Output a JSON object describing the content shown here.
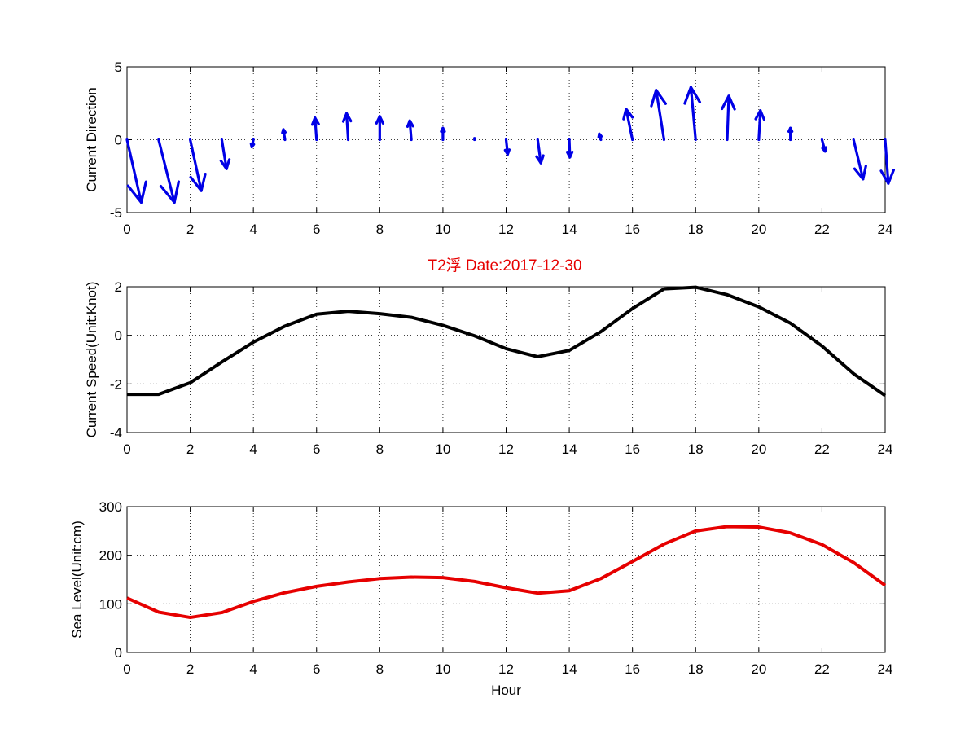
{
  "figure_title": "T2浮   Date:2017-12-30",
  "title_color": "#e60000",
  "chart_data": [
    {
      "type": "quiver",
      "ylabel": "Current Direction",
      "xlabel": "",
      "xlim": [
        0,
        24
      ],
      "ylim": [
        -5,
        5
      ],
      "xticks": [
        0,
        2,
        4,
        6,
        8,
        10,
        12,
        14,
        16,
        18,
        20,
        22,
        24
      ],
      "yticks": [
        -5,
        0,
        5
      ],
      "grid": true,
      "color": "#0000e6",
      "base_y": 0,
      "x": [
        0,
        1,
        2,
        3,
        4,
        5,
        6,
        7,
        8,
        9,
        10,
        11,
        12,
        13,
        14,
        15,
        16,
        17,
        18,
        19,
        20,
        21,
        22,
        23,
        24
      ],
      "u": [
        0.45,
        0.5,
        0.35,
        0.15,
        -0.05,
        -0.05,
        -0.05,
        -0.05,
        0.0,
        -0.05,
        0.0,
        0.0,
        0.05,
        0.1,
        0.02,
        -0.05,
        -0.2,
        -0.25,
        -0.15,
        0.05,
        0.05,
        0.0,
        0.1,
        0.3,
        0.1
      ],
      "v": [
        -4.3,
        -4.3,
        -3.5,
        -2.0,
        -0.5,
        0.7,
        1.5,
        1.8,
        1.6,
        1.3,
        0.8,
        0.1,
        -1.0,
        -1.6,
        -1.2,
        0.4,
        2.1,
        3.4,
        3.6,
        3.0,
        2.0,
        0.8,
        -0.8,
        -2.7,
        -3.0
      ]
    },
    {
      "type": "line",
      "ylabel": "Current Speed(Unit:Knot)",
      "xlabel": "",
      "xlim": [
        0,
        24
      ],
      "ylim": [
        -4,
        2
      ],
      "xticks": [
        0,
        2,
        4,
        6,
        8,
        10,
        12,
        14,
        16,
        18,
        20,
        22,
        24
      ],
      "yticks": [
        -4,
        -2,
        0,
        2
      ],
      "grid": true,
      "series": [
        {
          "color": "#000000",
          "x": [
            0,
            1,
            2,
            3,
            4,
            5,
            6,
            7,
            8,
            9,
            10,
            11,
            12,
            13,
            14,
            15,
            16,
            17,
            18,
            19,
            20,
            21,
            22,
            23,
            24
          ],
          "y": [
            -2.43,
            -2.43,
            -1.95,
            -1.1,
            -0.28,
            0.38,
            0.87,
            0.99,
            0.89,
            0.74,
            0.41,
            -0.02,
            -0.55,
            -0.88,
            -0.62,
            0.15,
            1.1,
            1.91,
            1.98,
            1.67,
            1.17,
            0.5,
            -0.44,
            -1.58,
            -2.48
          ]
        }
      ]
    },
    {
      "type": "line",
      "ylabel": "Sea Level(Unit:cm)",
      "xlabel": "Hour",
      "xlim": [
        0,
        24
      ],
      "ylim": [
        0,
        300
      ],
      "xticks": [
        0,
        2,
        4,
        6,
        8,
        10,
        12,
        14,
        16,
        18,
        20,
        22,
        24
      ],
      "yticks": [
        0,
        100,
        200,
        300
      ],
      "grid": true,
      "series": [
        {
          "color": "#e60000",
          "x": [
            0,
            1,
            2,
            3,
            4,
            5,
            6,
            7,
            8,
            9,
            10,
            11,
            12,
            13,
            14,
            15,
            16,
            17,
            18,
            19,
            20,
            21,
            22,
            23,
            24
          ],
          "y": [
            112,
            83,
            72,
            82,
            105,
            123,
            136,
            145,
            152,
            155,
            154,
            146,
            133,
            122,
            127,
            152,
            187,
            223,
            250,
            259,
            258,
            246,
            222,
            185,
            138
          ]
        }
      ]
    }
  ]
}
